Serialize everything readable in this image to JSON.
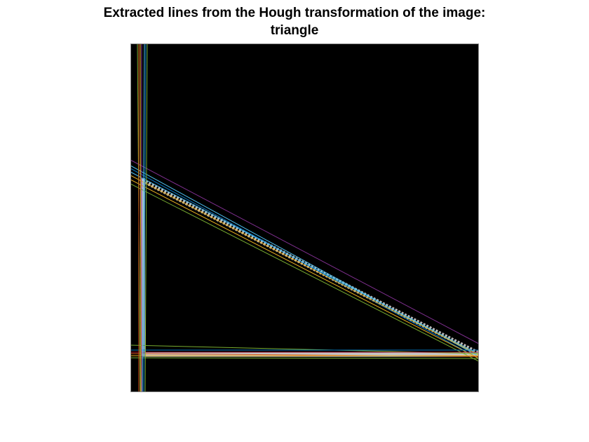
{
  "figure": {
    "title_line1": "Extracted lines from the Hough transformation of the image:",
    "title_line2": "triangle"
  },
  "colors": {
    "background": "#ffffff",
    "image": "#000000",
    "axes_frame": "#8a8a8a",
    "triangle_edge": "#d9d9d9",
    "line_palette": [
      "#0072bd",
      "#d95319",
      "#edb120",
      "#7e2f8e",
      "#77ac30",
      "#4dbeee",
      "#a2142f"
    ]
  }
}
